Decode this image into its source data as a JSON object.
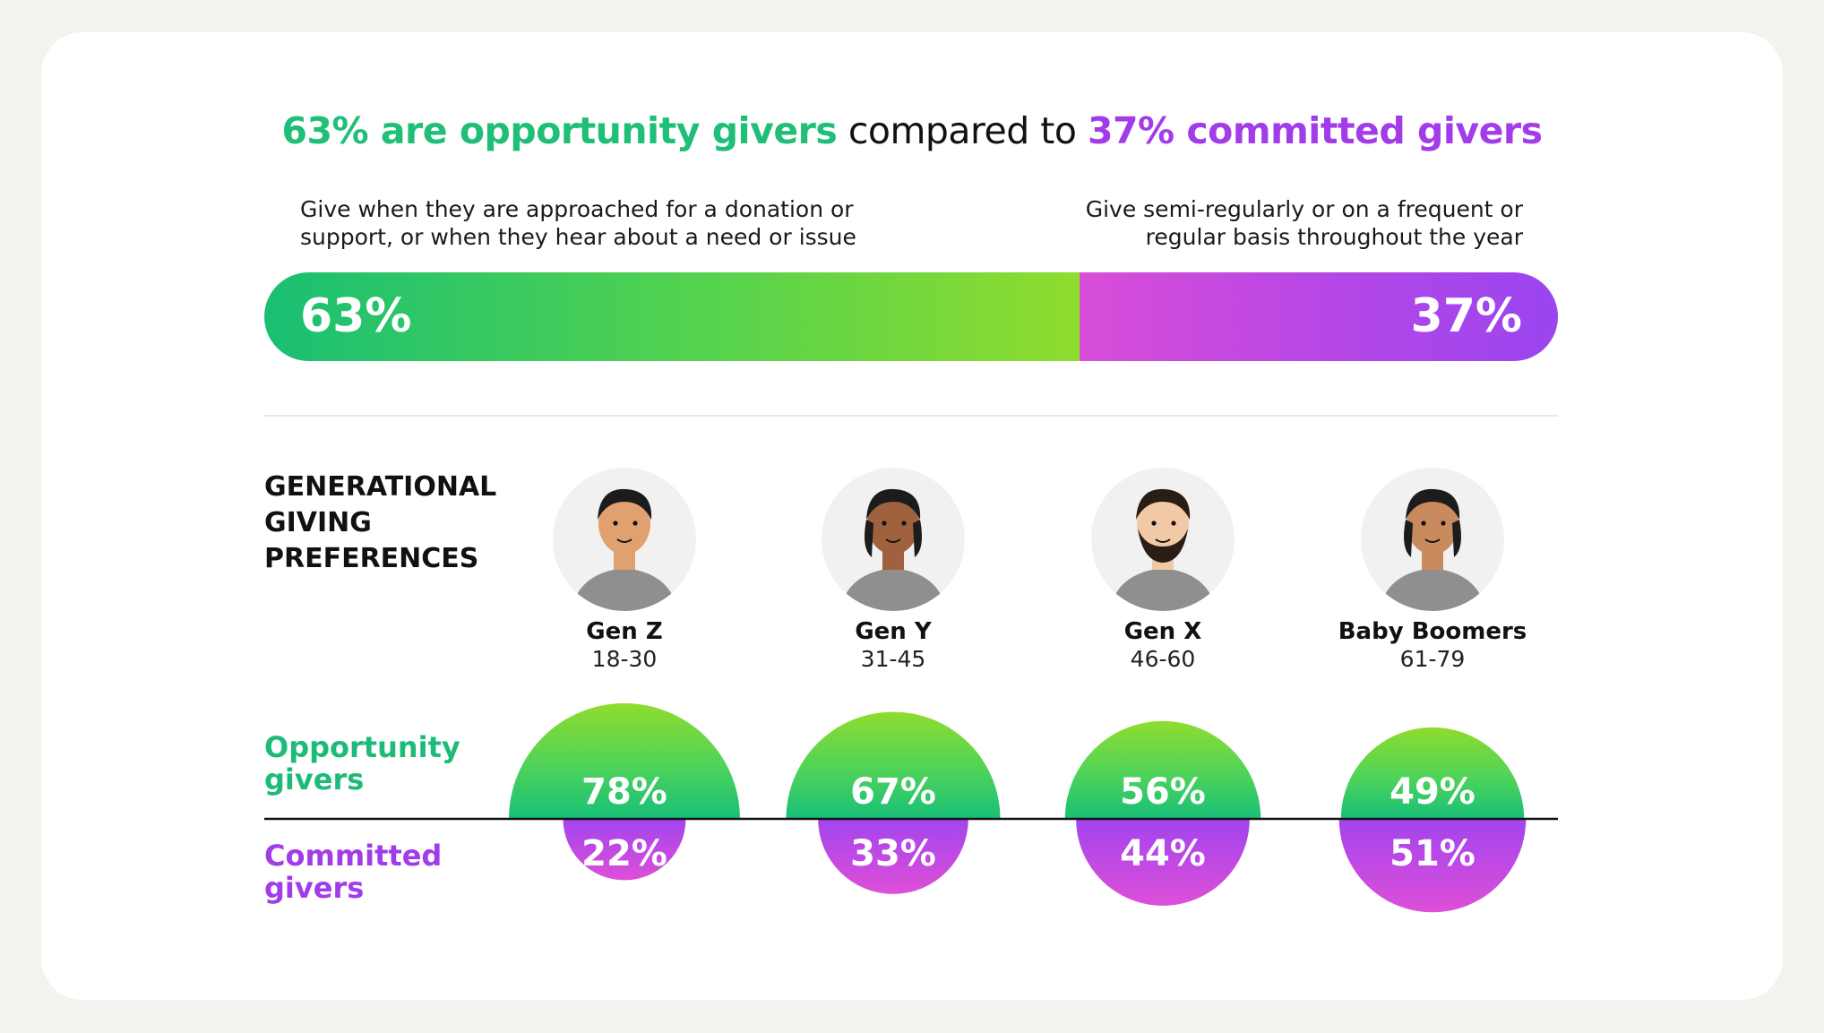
{
  "headline": {
    "opportunity_part": "63% are opportunity givers",
    "middle_part": " compared to ",
    "committed_part": "37% committed givers"
  },
  "descriptions": {
    "opportunity": "Give when they are approached for a donation or support, or when they hear about a need or issue",
    "committed": "Give semi-regularly or on a frequent or regular basis throughout the year"
  },
  "section_title": "GENERATIONAL GIVING PREFERENCES",
  "row_labels": {
    "opportunity": "Opportunity givers",
    "committed": "Committed givers"
  },
  "colors": {
    "opportunity": "#1fbf78",
    "committed": "#a23ce8"
  },
  "chart_data": [
    {
      "type": "bar",
      "categories": [
        "Opportunity givers",
        "Committed givers"
      ],
      "values": [
        63,
        37
      ],
      "value_labels": [
        "63%",
        "37%"
      ],
      "stacked": true
    },
    {
      "type": "bar",
      "categories": [
        "Gen Z",
        "Gen Y",
        "Gen X",
        "Baby Boomers"
      ],
      "category_ages": [
        "18-30",
        "31-45",
        "46-60",
        "61-79"
      ],
      "series": [
        {
          "name": "Opportunity givers",
          "values": [
            78,
            67,
            56,
            49
          ],
          "labels": [
            "78%",
            "67%",
            "56%",
            "49%"
          ]
        },
        {
          "name": "Committed givers",
          "values": [
            22,
            33,
            44,
            51
          ],
          "labels": [
            "22%",
            "33%",
            "44%",
            "51%"
          ]
        }
      ]
    }
  ],
  "avatars": [
    "gen-z-avatar-icon",
    "gen-y-avatar-icon",
    "gen-x-avatar-icon",
    "baby-boomers-avatar-icon"
  ]
}
